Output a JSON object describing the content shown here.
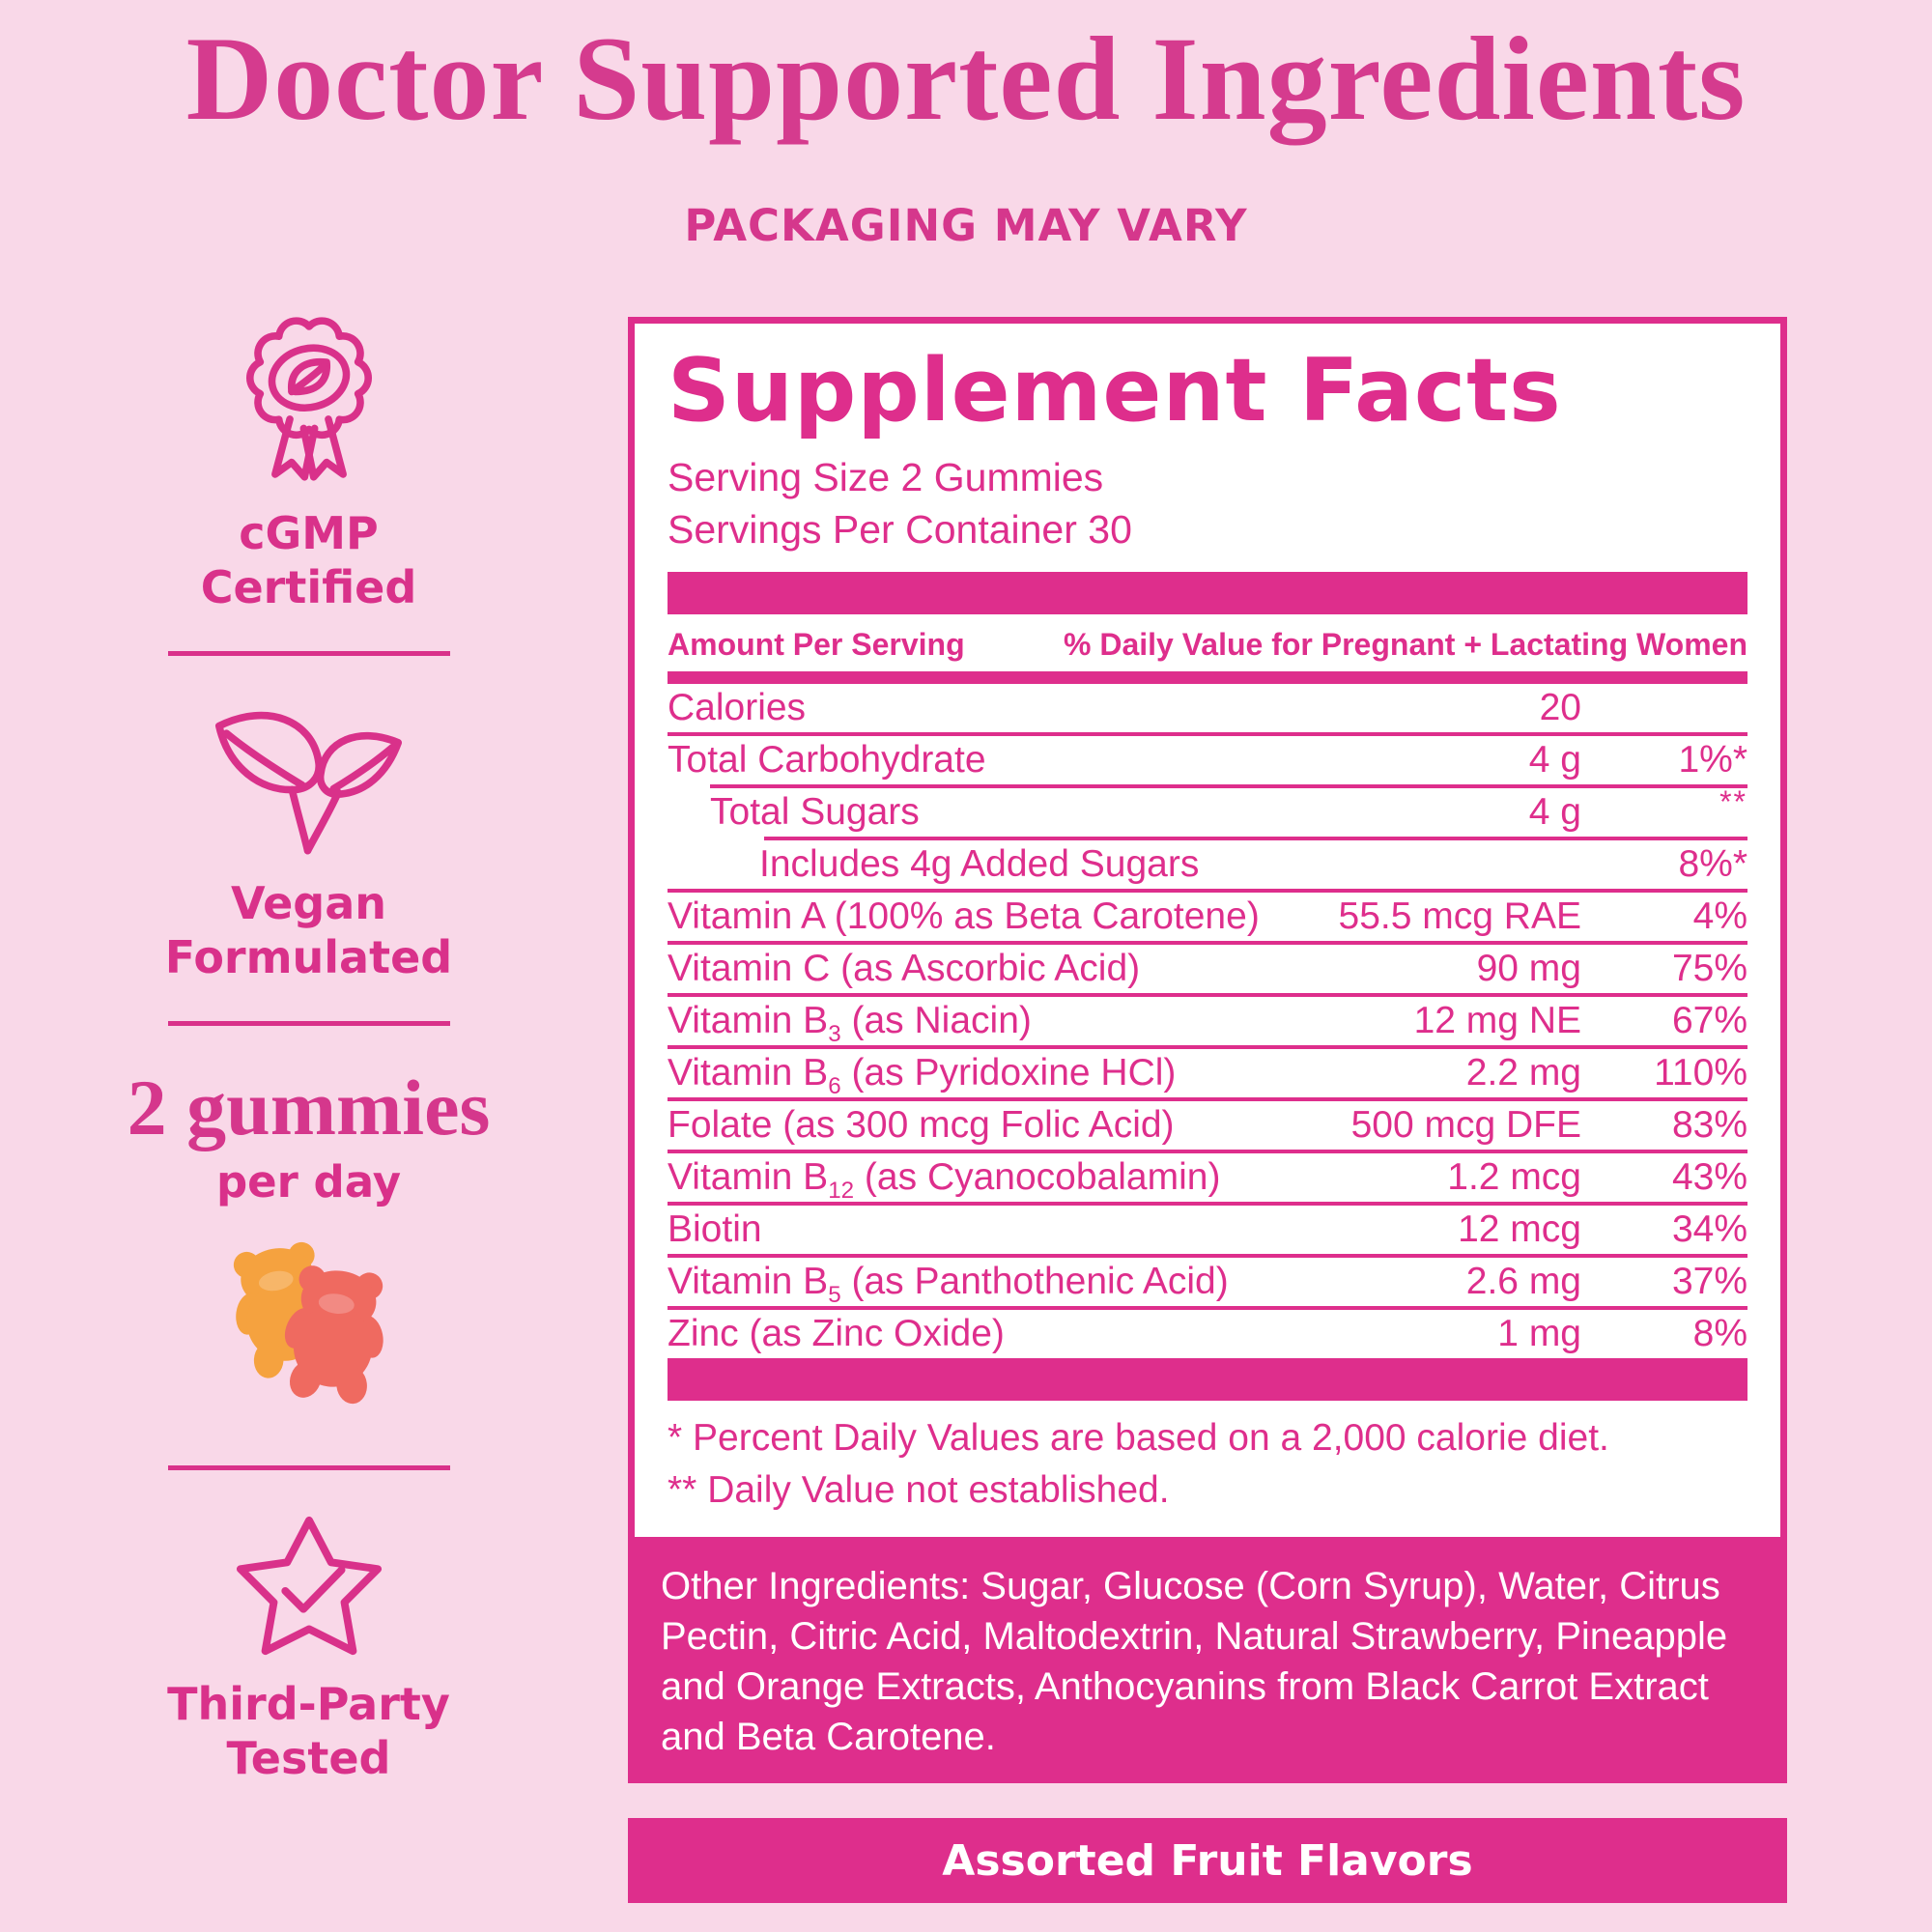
{
  "page": {
    "title": "Doctor Supported Ingredients",
    "subtitle": "PACKAGING MAY VARY"
  },
  "colors": {
    "background": "#f9d8e8",
    "accent_pink": "#de2e8c",
    "title_pink": "#d53b8e",
    "panel_background": "#ffffff",
    "banner_text": "#ffffff",
    "gummy_orange": "#f5a23f",
    "gummy_red": "#ef6a60"
  },
  "sidebar": {
    "cgmp": {
      "icon": "rosette-leaf-badge",
      "line1": "cGMP",
      "line2": "Certified"
    },
    "vegan": {
      "icon": "vegan-leaves",
      "line1": "Vegan",
      "line2": "Formulated"
    },
    "dosage": {
      "headline": "2 gummies",
      "subline": "per day",
      "image": "two-gummy-bears"
    },
    "tested": {
      "icon": "star-check",
      "line1": "Third-Party",
      "line2": "Tested"
    }
  },
  "supplement_facts": {
    "title": "Supplement Facts",
    "serving_size": "Serving Size 2 Gummies",
    "servings_per_container": "Servings Per Container 30",
    "columns": {
      "amount_header": "Amount Per Serving",
      "dv_header": "% Daily Value for Pregnant + Lactating Women"
    },
    "rows": [
      {
        "label": "Calories",
        "sub": "",
        "label2": "",
        "amount": "20",
        "dv": "",
        "indent": 0,
        "sep": "full"
      },
      {
        "label": "Total Carbohydrate",
        "sub": "",
        "label2": "",
        "amount": "4 g",
        "dv": "1%*",
        "indent": 0,
        "sep": "indent1"
      },
      {
        "label": "Total Sugars",
        "sub": "",
        "label2": "",
        "amount": "4 g",
        "dv": "**",
        "indent": 1,
        "sep": "indent2"
      },
      {
        "label": "Includes 4g Added Sugars",
        "sub": "",
        "label2": "",
        "amount": "",
        "dv": "8%*",
        "indent": 2,
        "sep": "full"
      },
      {
        "label": "Vitamin A (100% as Beta Carotene)",
        "sub": "",
        "label2": "",
        "amount": "55.5 mcg RAE",
        "dv": "4%",
        "indent": 0,
        "sep": "full"
      },
      {
        "label": "Vitamin C (as Ascorbic Acid)",
        "sub": "",
        "label2": "",
        "amount": "90 mg",
        "dv": "75%",
        "indent": 0,
        "sep": "full"
      },
      {
        "label": "Vitamin B",
        "sub": "3",
        "label2": " (as Niacin)",
        "amount": "12 mg NE",
        "dv": "67%",
        "indent": 0,
        "sep": "full"
      },
      {
        "label": "Vitamin B",
        "sub": "6",
        "label2": " (as Pyridoxine HCl)",
        "amount": "2.2 mg",
        "dv": "110%",
        "indent": 0,
        "sep": "full"
      },
      {
        "label": "Folate (as 300 mcg Folic Acid)",
        "sub": "",
        "label2": "",
        "amount": "500 mcg DFE",
        "dv": "83%",
        "indent": 0,
        "sep": "full"
      },
      {
        "label": "Vitamin B",
        "sub": "12",
        "label2": " (as Cyanocobalamin)",
        "amount": "1.2 mcg",
        "dv": "43%",
        "indent": 0,
        "sep": "full"
      },
      {
        "label": "Biotin",
        "sub": "",
        "label2": "",
        "amount": "12 mcg",
        "dv": "34%",
        "indent": 0,
        "sep": "full"
      },
      {
        "label": "Vitamin B",
        "sub": "5",
        "label2": " (as Panthothenic Acid)",
        "amount": "2.6 mg",
        "dv": "37%",
        "indent": 0,
        "sep": "full"
      },
      {
        "label": "Zinc (as Zinc Oxide)",
        "sub": "",
        "label2": "",
        "amount": "1 mg",
        "dv": "8%",
        "indent": 0,
        "sep": "none"
      }
    ],
    "footnotes": [
      "* Percent Daily Values are based on a 2,000 calorie diet.",
      "** Daily Value not established."
    ]
  },
  "other_ingredients": "Other Ingredients: Sugar, Glucose (Corn Syrup), Water, Citrus Pectin, Citric Acid, Maltodextrin, Natural Strawberry, Pineapple and Orange Extracts, Anthocyanins from Black Carrot Extract and Beta Carotene.",
  "flavor_banner": "Assorted Fruit Flavors"
}
